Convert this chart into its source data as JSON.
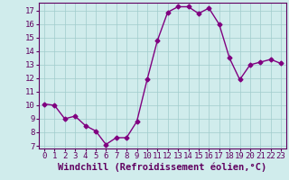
{
  "x": [
    0,
    1,
    2,
    3,
    4,
    5,
    6,
    7,
    8,
    9,
    10,
    11,
    12,
    13,
    14,
    15,
    16,
    17,
    18,
    19,
    20,
    21,
    22,
    23
  ],
  "y": [
    10.1,
    10.0,
    9.0,
    9.2,
    8.5,
    8.1,
    7.1,
    7.6,
    7.6,
    8.8,
    11.9,
    14.8,
    16.9,
    17.3,
    17.3,
    16.8,
    17.2,
    16.0,
    13.5,
    11.9,
    13.0,
    13.2,
    13.4,
    13.1
  ],
  "xlabel": "Windchill (Refroidissement éolien,°C)",
  "xlim": [
    -0.5,
    23.5
  ],
  "ylim": [
    6.8,
    17.6
  ],
  "yticks": [
    7,
    8,
    9,
    10,
    11,
    12,
    13,
    14,
    15,
    16,
    17
  ],
  "xticks": [
    0,
    1,
    2,
    3,
    4,
    5,
    6,
    7,
    8,
    9,
    10,
    11,
    12,
    13,
    14,
    15,
    16,
    17,
    18,
    19,
    20,
    21,
    22,
    23
  ],
  "line_color": "#800080",
  "marker": "D",
  "marker_size": 2.5,
  "background_color": "#d0ecec",
  "grid_color": "#a0cccc",
  "tick_label_fontsize": 6.5,
  "xlabel_fontsize": 7.5,
  "spine_color": "#600060"
}
